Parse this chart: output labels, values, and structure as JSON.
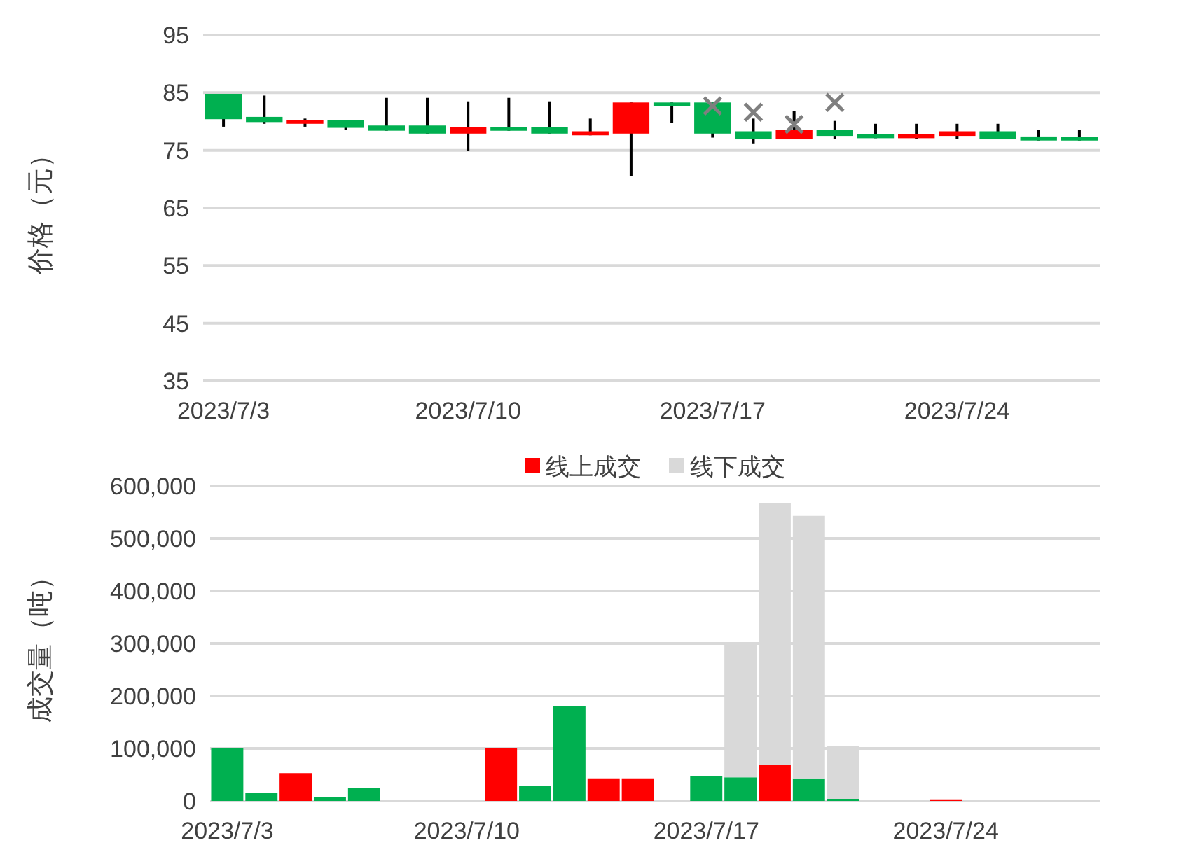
{
  "chart_data": [
    {
      "type": "candlestick",
      "ylabel": "价格（元）",
      "categories": [
        "2023/7/3",
        null,
        null,
        null,
        null,
        null,
        "2023/7/10",
        null,
        null,
        null,
        null,
        null,
        "2023/7/17",
        null,
        null,
        null,
        null,
        null,
        "2023/7/24",
        null,
        null,
        null
      ],
      "ohlc": [
        [
          84.8,
          84.8,
          79.1,
          80.4
        ],
        [
          80.8,
          84.5,
          79.6,
          79.9
        ],
        [
          79.6,
          80.5,
          79.1,
          80.3
        ],
        [
          80.3,
          80.3,
          78.6,
          78.9
        ],
        [
          79.3,
          84.1,
          78.4,
          78.4
        ],
        [
          79.3,
          84.1,
          77.9,
          77.9
        ],
        [
          77.9,
          83.5,
          74.9,
          79.0
        ],
        [
          79.0,
          84.1,
          78.4,
          78.4
        ],
        [
          79.0,
          83.5,
          77.9,
          77.9
        ],
        [
          77.6,
          80.5,
          77.6,
          78.3
        ],
        [
          77.9,
          83.3,
          70.5,
          83.3
        ],
        [
          83.3,
          83.3,
          79.7,
          82.7
        ],
        [
          83.3,
          83.3,
          77.2,
          77.9
        ],
        [
          78.3,
          80.5,
          76.2,
          76.9
        ],
        [
          76.9,
          81.8,
          76.9,
          78.6
        ],
        [
          78.6,
          80.1,
          76.9,
          77.5
        ],
        [
          77.8,
          79.6,
          77.1,
          77.1
        ],
        [
          77.1,
          79.6,
          76.9,
          77.8
        ],
        [
          77.5,
          79.6,
          76.9,
          78.3
        ],
        [
          78.3,
          79.6,
          76.9,
          76.9
        ],
        [
          77.4,
          78.6,
          76.7,
          76.7
        ],
        [
          77.3,
          78.6,
          76.7,
          76.7
        ]
      ],
      "colors": [
        "#00b050",
        "#00b050",
        "#ff0000",
        "#00b050",
        "#00b050",
        "#00b050",
        "#ff0000",
        "#00b050",
        "#00b050",
        "#ff0000",
        "#ff0000",
        "#00b050",
        "#00b050",
        "#00b050",
        "#ff0000",
        "#00b050",
        "#00b050",
        "#ff0000",
        "#ff0000",
        "#00b050",
        "#00b050",
        "#00b050"
      ],
      "series": [
        {
          "type": "scatter",
          "marker": "cross",
          "color": "#7f7f7f",
          "values": [
            null,
            null,
            null,
            null,
            null,
            null,
            null,
            null,
            null,
            null,
            null,
            null,
            82.7,
            81.6,
            79.5,
            83.3,
            null,
            null,
            null,
            null,
            null,
            null
          ]
        }
      ],
      "ylim": [
        35,
        95
      ],
      "yticks": [
        35,
        45,
        55,
        65,
        75,
        85,
        95
      ],
      "grid": "y",
      "legend": false
    },
    {
      "type": "bar",
      "stacked": true,
      "ylabel": "成交量（吨）",
      "categories": [
        "2023/7/3",
        null,
        null,
        null,
        null,
        null,
        null,
        "2023/7/10",
        null,
        null,
        null,
        null,
        null,
        null,
        "2023/7/17",
        null,
        null,
        null,
        null,
        null,
        null,
        "2023/7/24",
        null,
        null,
        null,
        null
      ],
      "series": [
        {
          "name": "线上成交",
          "color": "#ff0000",
          "colors": [
            "#00b050",
            "#00b050",
            "#ff0000",
            "#00b050",
            "#00b050",
            null,
            null,
            null,
            "#ff0000",
            "#00b050",
            "#00b050",
            "#ff0000",
            "#ff0000",
            null,
            "#00b050",
            "#00b050",
            "#ff0000",
            "#00b050",
            "#00b050",
            null,
            null,
            "#ff0000",
            null,
            null,
            null,
            null
          ],
          "values": [
            100000,
            16000,
            53000,
            8000,
            24000,
            null,
            null,
            null,
            100000,
            29000,
            180000,
            43000,
            43000,
            null,
            48000,
            45000,
            68000,
            43000,
            4000,
            null,
            null,
            3000,
            null,
            null,
            null,
            null
          ]
        },
        {
          "name": "线下成交",
          "color": "#d9d9d9",
          "values": [
            null,
            null,
            null,
            null,
            null,
            null,
            null,
            null,
            null,
            null,
            null,
            null,
            null,
            null,
            null,
            255000,
            500000,
            500000,
            100000,
            null,
            null,
            null,
            null,
            null,
            null,
            null
          ]
        }
      ],
      "ylim": [
        0,
        600000
      ],
      "yticks": [
        0,
        {
          "value": 100000,
          "label": "100,000"
        },
        {
          "value": 200000,
          "label": "200,000"
        },
        {
          "value": 300000,
          "label": "300,000"
        },
        {
          "value": 400000,
          "label": "400,000"
        },
        {
          "value": 500000,
          "label": "500,000"
        },
        {
          "value": 600000,
          "label": "600,000"
        }
      ],
      "grid": "y",
      "legend": "top"
    }
  ]
}
